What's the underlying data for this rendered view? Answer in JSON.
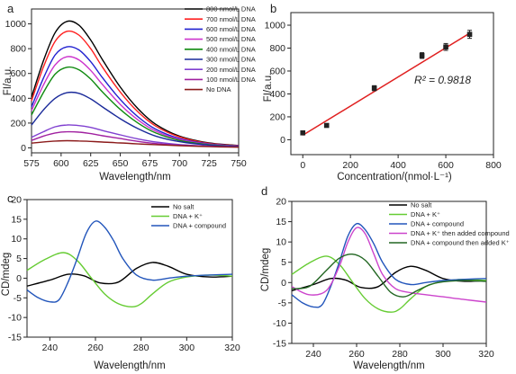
{
  "chart_data": [
    {
      "id": "a",
      "panel_label": "a",
      "type": "line",
      "xlabel": "Wavelength/nm",
      "ylabel": "FI/a.u.",
      "xlim": [
        575,
        750
      ],
      "ylim": [
        -40,
        1120
      ],
      "xticks": [
        575,
        600,
        625,
        650,
        675,
        700,
        725,
        750
      ],
      "yticks": [
        0,
        200,
        400,
        600,
        800,
        1000
      ],
      "legend_position": "top-right",
      "series": [
        {
          "name": "800 nmol/L DNA",
          "color": "#000000",
          "x": [
            575,
            585,
            595,
            605,
            615,
            625,
            635,
            650,
            665,
            680,
            700,
            725,
            750
          ],
          "y": [
            410,
            700,
            930,
            1020,
            990,
            870,
            710,
            490,
            315,
            190,
            95,
            40,
            20
          ]
        },
        {
          "name": "700 nmol/L DNA",
          "color": "#ff2020",
          "x": [
            575,
            585,
            595,
            605,
            615,
            625,
            635,
            650,
            665,
            680,
            700,
            725,
            750
          ],
          "y": [
            380,
            650,
            860,
            940,
            910,
            800,
            650,
            450,
            290,
            175,
            88,
            36,
            18
          ]
        },
        {
          "name": "600 nmol/L DNA",
          "color": "#2020d0",
          "x": [
            575,
            585,
            595,
            605,
            615,
            625,
            635,
            650,
            665,
            680,
            700,
            725,
            750
          ],
          "y": [
            330,
            560,
            750,
            815,
            790,
            695,
            565,
            390,
            250,
            150,
            75,
            32,
            16
          ]
        },
        {
          "name": "500 nmol/L DNA",
          "color": "#cc33cc",
          "x": [
            575,
            585,
            595,
            605,
            615,
            625,
            635,
            650,
            665,
            680,
            700,
            725,
            750
          ],
          "y": [
            300,
            505,
            670,
            735,
            710,
            625,
            510,
            350,
            225,
            135,
            68,
            29,
            15
          ]
        },
        {
          "name": "400 nmol/L DNA",
          "color": "#108a10",
          "x": [
            575,
            585,
            595,
            605,
            615,
            625,
            635,
            650,
            665,
            680,
            700,
            725,
            750
          ],
          "y": [
            265,
            445,
            595,
            650,
            630,
            555,
            450,
            310,
            200,
            120,
            60,
            26,
            13
          ]
        },
        {
          "name": "300 nmol/L DNA",
          "color": "#1a2a9a",
          "x": [
            575,
            585,
            595,
            605,
            615,
            625,
            635,
            650,
            665,
            680,
            700,
            725,
            750
          ],
          "y": [
            185,
            305,
            400,
            445,
            440,
            395,
            330,
            235,
            155,
            95,
            50,
            22,
            12
          ]
        },
        {
          "name": "200 nmol/L DNA",
          "color": "#8040d0",
          "x": [
            575,
            585,
            595,
            605,
            615,
            625,
            635,
            650,
            665,
            680,
            700,
            725,
            750
          ],
          "y": [
            85,
            130,
            170,
            185,
            180,
            165,
            140,
            105,
            72,
            47,
            27,
            14,
            8
          ]
        },
        {
          "name": "100 nmol/L DNA",
          "color": "#a020a0",
          "x": [
            575,
            585,
            595,
            605,
            615,
            625,
            635,
            650,
            665,
            680,
            700,
            725,
            750
          ],
          "y": [
            60,
            95,
            120,
            130,
            127,
            115,
            98,
            75,
            52,
            35,
            21,
            12,
            7
          ]
        },
        {
          "name": "No DNA",
          "color": "#8b1a1a",
          "x": [
            575,
            585,
            595,
            605,
            615,
            625,
            635,
            650,
            665,
            680,
            700,
            725,
            750
          ],
          "y": [
            38,
            48,
            55,
            58,
            56,
            52,
            47,
            40,
            32,
            26,
            18,
            10,
            6
          ]
        }
      ]
    },
    {
      "id": "b",
      "panel_label": "b",
      "type": "scatter",
      "xlabel": "Concentration/(nmol·L⁻¹)",
      "ylabel": "FI/a.u.",
      "xlim": [
        -50,
        800
      ],
      "ylim": [
        -130,
        1110
      ],
      "xticks": [
        0,
        200,
        400,
        600,
        800
      ],
      "yticks": [
        0,
        200,
        400,
        600,
        800,
        1000
      ],
      "annotation": "R² = 0.9818",
      "points": {
        "x": [
          0,
          100,
          300,
          500,
          600,
          700
        ],
        "y": [
          60,
          125,
          450,
          735,
          810,
          920
        ],
        "err": [
          10,
          8,
          22,
          25,
          30,
          35
        ],
        "color": "#222222"
      },
      "fit_line": {
        "x": [
          0,
          700
        ],
        "y": [
          40,
          930
        ],
        "color": "#e02020"
      }
    },
    {
      "id": "c",
      "panel_label": "c",
      "type": "line",
      "xlabel": "Wavelength/nm",
      "ylabel": "CD/mdeg",
      "xlim": [
        230,
        320
      ],
      "ylim": [
        -15,
        20
      ],
      "xticks": [
        240,
        260,
        280,
        300,
        320
      ],
      "yticks": [
        -15,
        -10,
        -5,
        0,
        5,
        10,
        15,
        20
      ],
      "legend_position": "top-right",
      "series": [
        {
          "name": "No salt",
          "color": "#000000",
          "x": [
            230,
            240,
            248,
            255,
            262,
            270,
            278,
            285,
            292,
            300,
            310,
            320
          ],
          "y": [
            -2.0,
            -0.5,
            1.0,
            0.6,
            -1.2,
            -1.0,
            2.5,
            4.0,
            3.0,
            1.0,
            0.3,
            0.5
          ]
        },
        {
          "name": "DNA + K⁺",
          "color": "#66cc33",
          "x": [
            230,
            238,
            246,
            252,
            258,
            264,
            270,
            276,
            280,
            285,
            292,
            300,
            310,
            320
          ],
          "y": [
            2.0,
            4.8,
            6.5,
            4.5,
            0.2,
            -4.0,
            -6.5,
            -7.3,
            -6.5,
            -4.0,
            -1.0,
            0.3,
            0.8,
            0.5
          ]
        },
        {
          "name": "DNA + compound",
          "color": "#2255bb",
          "x": [
            230,
            235,
            240,
            244,
            248,
            252,
            256,
            260,
            264,
            268,
            272,
            278,
            285,
            292,
            300,
            310,
            320
          ],
          "y": [
            -3.0,
            -5.0,
            -6.0,
            -5.5,
            -1.0,
            5.0,
            11.5,
            14.5,
            13.0,
            9.5,
            5.0,
            0.8,
            -0.5,
            0.0,
            0.5,
            0.8,
            1.0
          ]
        }
      ]
    },
    {
      "id": "d",
      "panel_label": "d",
      "type": "line",
      "xlabel": "Wavelength/nm",
      "ylabel": "CD/mdeg",
      "xlim": [
        230,
        320
      ],
      "ylim": [
        -15,
        20
      ],
      "xticks": [
        240,
        260,
        280,
        300,
        320
      ],
      "yticks": [
        -15,
        -10,
        -5,
        0,
        5,
        10,
        15,
        20
      ],
      "legend_position": "top-right",
      "series": [
        {
          "name": "No salt",
          "color": "#000000",
          "x": [
            230,
            240,
            248,
            255,
            262,
            270,
            278,
            285,
            292,
            300,
            310,
            320
          ],
          "y": [
            -2.0,
            -0.5,
            1.0,
            0.6,
            -1.2,
            -1.0,
            2.5,
            4.0,
            3.0,
            1.0,
            0.3,
            0.5
          ]
        },
        {
          "name": "DNA + K⁺",
          "color": "#66cc33",
          "x": [
            230,
            238,
            246,
            252,
            258,
            264,
            270,
            276,
            280,
            285,
            292,
            300,
            310,
            320
          ],
          "y": [
            2.0,
            4.8,
            6.5,
            4.5,
            0.2,
            -4.0,
            -6.5,
            -7.3,
            -6.5,
            -4.0,
            -1.0,
            0.3,
            0.8,
            0.5
          ]
        },
        {
          "name": "DNA + compound",
          "color": "#2255bb",
          "x": [
            230,
            235,
            240,
            244,
            248,
            252,
            256,
            260,
            264,
            268,
            272,
            278,
            285,
            292,
            300,
            310,
            320
          ],
          "y": [
            -3.0,
            -5.0,
            -6.0,
            -5.5,
            -1.0,
            5.0,
            11.5,
            14.5,
            13.0,
            9.5,
            5.0,
            0.8,
            -0.5,
            0.0,
            0.5,
            0.8,
            1.0
          ]
        },
        {
          "name": "DNA + K⁺ then added compound",
          "color": "#cc44cc",
          "x": [
            230,
            238,
            246,
            252,
            256,
            260,
            264,
            268,
            272,
            278,
            285,
            292,
            300,
            310,
            320
          ],
          "y": [
            -1.0,
            -3.0,
            -2.0,
            4.0,
            10.0,
            13.5,
            12.0,
            7.0,
            2.0,
            -1.5,
            -2.5,
            -3.0,
            -3.5,
            -4.2,
            -4.8
          ]
        },
        {
          "name": "DNA + compound then added K⁺",
          "color": "#226622",
          "x": [
            230,
            238,
            246,
            252,
            258,
            264,
            270,
            276,
            282,
            288,
            294,
            300,
            310,
            320
          ],
          "y": [
            -1.5,
            -1.0,
            3.0,
            6.0,
            7.0,
            5.5,
            1.5,
            -2.5,
            -3.5,
            -2.0,
            -0.5,
            0.2,
            0.5,
            0.3
          ]
        }
      ]
    }
  ]
}
